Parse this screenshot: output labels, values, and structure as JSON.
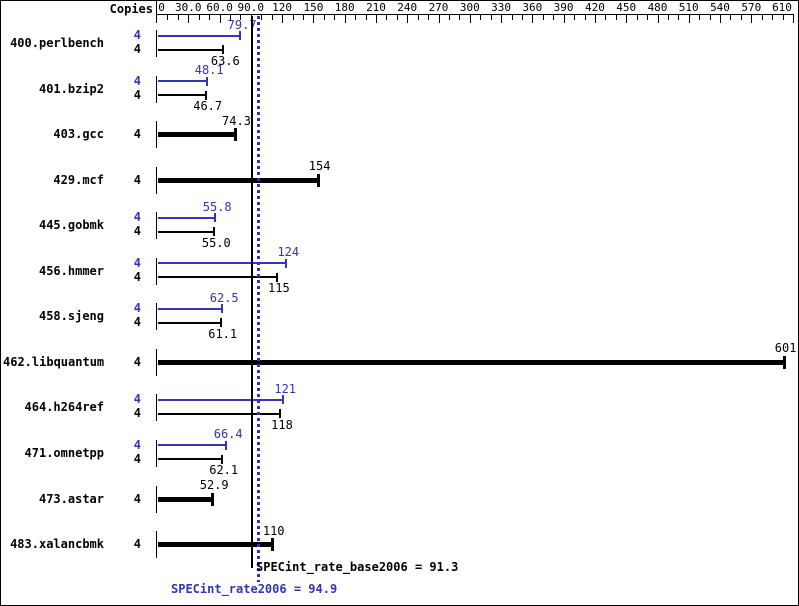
{
  "colors": {
    "peak_blue": "#3333bb",
    "base_black": "#000000",
    "background": "#ffffff"
  },
  "copies_header": "Copies",
  "chart_data": {
    "type": "bar",
    "orientation": "horizontal",
    "title": "",
    "xlabel": "",
    "ylabel": "Copies",
    "unit_axis": {
      "min": 0,
      "max": 610,
      "minor_tick_interval": 10,
      "major_tick_interval": 30,
      "tick_labels": [
        {
          "value": 0,
          "label": "0"
        },
        {
          "value": 30,
          "label": "30.0"
        },
        {
          "value": 60,
          "label": "60.0"
        },
        {
          "value": 90,
          "label": "90.0"
        },
        {
          "value": 120,
          "label": "120"
        },
        {
          "value": 150,
          "label": "150"
        },
        {
          "value": 180,
          "label": "180"
        },
        {
          "value": 210,
          "label": "210"
        },
        {
          "value": 240,
          "label": "240"
        },
        {
          "value": 270,
          "label": "270"
        },
        {
          "value": 300,
          "label": "300"
        },
        {
          "value": 330,
          "label": "330"
        },
        {
          "value": 360,
          "label": "360"
        },
        {
          "value": 390,
          "label": "390"
        },
        {
          "value": 420,
          "label": "420"
        },
        {
          "value": 450,
          "label": "450"
        },
        {
          "value": 480,
          "label": "480"
        },
        {
          "value": 510,
          "label": "510"
        },
        {
          "value": 540,
          "label": "540"
        },
        {
          "value": 570,
          "label": "570"
        },
        {
          "value": 610,
          "label": "610"
        }
      ]
    },
    "benchmarks": [
      {
        "name": "400.perlbench",
        "copies_label": "4",
        "peak": 79.7,
        "peak_label": "79.7",
        "base": 63.6,
        "base_label": "63.6"
      },
      {
        "name": "401.bzip2",
        "copies_label": "4",
        "peak": 48.1,
        "peak_label": "48.1",
        "base": 46.7,
        "base_label": "46.7"
      },
      {
        "name": "403.gcc",
        "copies_label": "4",
        "base": 74.3,
        "base_label": "74.3"
      },
      {
        "name": "429.mcf",
        "copies_label": "4",
        "base": 154,
        "base_label": "154"
      },
      {
        "name": "445.gobmk",
        "copies_label": "4",
        "peak": 55.8,
        "peak_label": "55.8",
        "base": 55.0,
        "base_label": "55.0"
      },
      {
        "name": "456.hmmer",
        "copies_label": "4",
        "peak": 124,
        "peak_label": "124",
        "base": 115,
        "base_label": "115"
      },
      {
        "name": "458.sjeng",
        "copies_label": "4",
        "peak": 62.5,
        "peak_label": "62.5",
        "base": 61.1,
        "base_label": "61.1"
      },
      {
        "name": "462.libquantum",
        "copies_label": "4",
        "base": 601,
        "base_label": "601"
      },
      {
        "name": "464.h264ref",
        "copies_label": "4",
        "peak": 121,
        "peak_label": "121",
        "base": 118,
        "base_label": "118"
      },
      {
        "name": "471.omnetpp",
        "copies_label": "4",
        "peak": 66.4,
        "peak_label": "66.4",
        "base": 62.1,
        "base_label": "62.1"
      },
      {
        "name": "473.astar",
        "copies_label": "4",
        "base": 52.9,
        "base_label": "52.9"
      },
      {
        "name": "483.xalancbmk",
        "copies_label": "4",
        "base": 110,
        "base_label": "110"
      }
    ],
    "means": {
      "base": {
        "value": 91.3,
        "text": "SPECint_rate_base2006 = 91.3"
      },
      "peak": {
        "value": 94.9,
        "text": "SPECint_rate2006 = 94.9"
      }
    }
  }
}
